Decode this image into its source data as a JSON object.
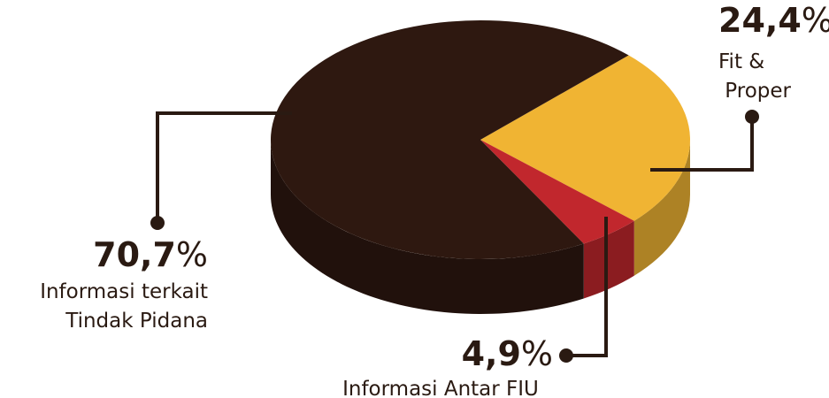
{
  "chart_data": {
    "type": "pie",
    "style": "3d",
    "categories": [
      "Informasi terkait\nTindak Pidana",
      "Fit &\nProper",
      "Informasi Antar FIU"
    ],
    "values": [
      70.7,
      24.4,
      4.9
    ],
    "value_labels": [
      "70,7%",
      "24,4%",
      "4,9%"
    ],
    "colors": [
      "#2e1810",
      "#f0b433",
      "#c1272d"
    ]
  }
}
